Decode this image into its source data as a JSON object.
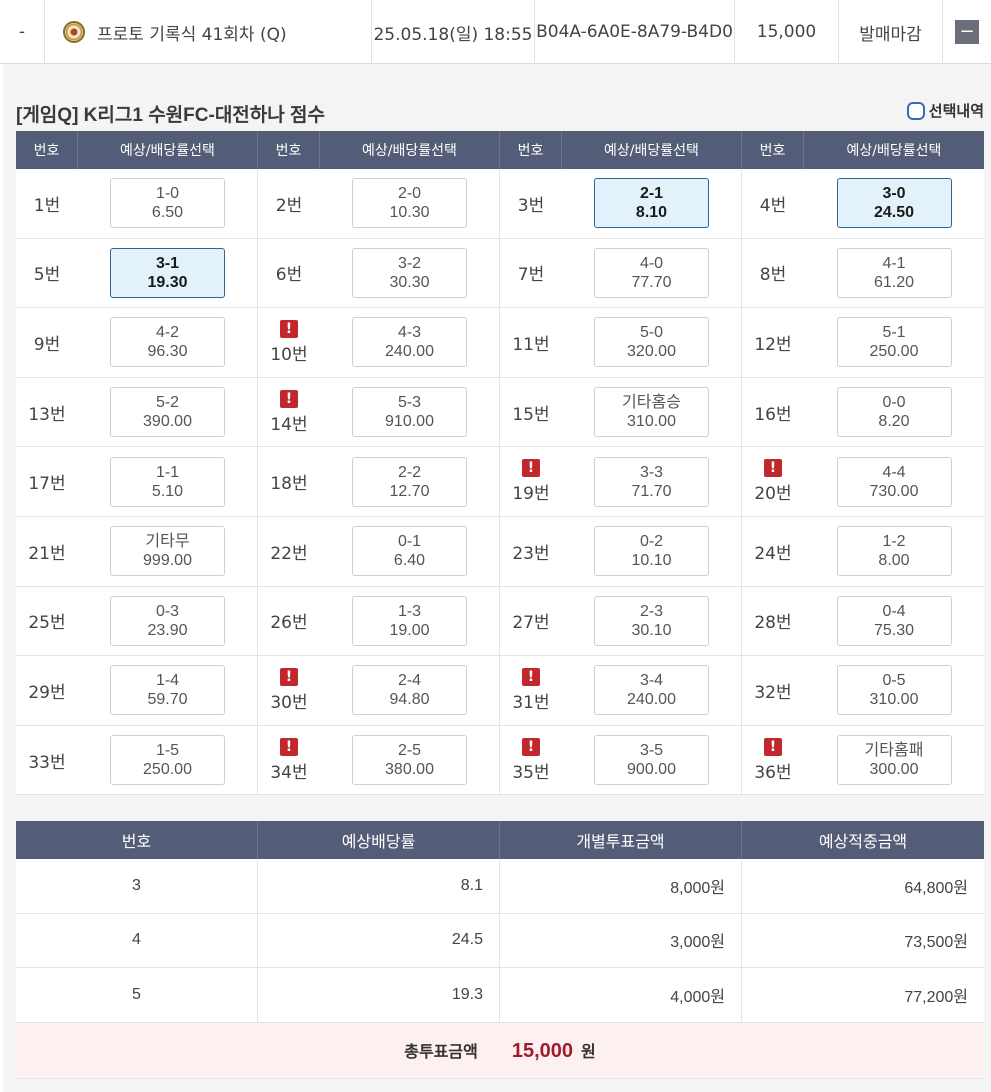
{
  "summary": {
    "dash": "-",
    "game_icon": "soccer-ball-icon",
    "game_name": "프로토 기록식 41회차 (Q)",
    "datetime": "25.05.18(일) 18:55",
    "code": "B04A-6A0E-8A79-B4D0",
    "amount": "15,000",
    "status": "발매마감",
    "collapse_symbol": "−"
  },
  "detail": {
    "title": "[게임Q] K리그1 수원FC-대전하나 점수",
    "history_label": "선택내역",
    "grid_headers": {
      "num": "번호",
      "select": "예상/배당률선택"
    },
    "cells": [
      {
        "num": "1번",
        "score": "1-0",
        "odds": "6.50",
        "selected": false,
        "warn": false
      },
      {
        "num": "2번",
        "score": "2-0",
        "odds": "10.30",
        "selected": false,
        "warn": false
      },
      {
        "num": "3번",
        "score": "2-1",
        "odds": "8.10",
        "selected": true,
        "warn": false
      },
      {
        "num": "4번",
        "score": "3-0",
        "odds": "24.50",
        "selected": true,
        "warn": false
      },
      {
        "num": "5번",
        "score": "3-1",
        "odds": "19.30",
        "selected": true,
        "warn": false
      },
      {
        "num": "6번",
        "score": "3-2",
        "odds": "30.30",
        "selected": false,
        "warn": false
      },
      {
        "num": "7번",
        "score": "4-0",
        "odds": "77.70",
        "selected": false,
        "warn": false
      },
      {
        "num": "8번",
        "score": "4-1",
        "odds": "61.20",
        "selected": false,
        "warn": false
      },
      {
        "num": "9번",
        "score": "4-2",
        "odds": "96.30",
        "selected": false,
        "warn": false
      },
      {
        "num": "10번",
        "score": "4-3",
        "odds": "240.00",
        "selected": false,
        "warn": true
      },
      {
        "num": "11번",
        "score": "5-0",
        "odds": "320.00",
        "selected": false,
        "warn": false
      },
      {
        "num": "12번",
        "score": "5-1",
        "odds": "250.00",
        "selected": false,
        "warn": false
      },
      {
        "num": "13번",
        "score": "5-2",
        "odds": "390.00",
        "selected": false,
        "warn": false
      },
      {
        "num": "14번",
        "score": "5-3",
        "odds": "910.00",
        "selected": false,
        "warn": true
      },
      {
        "num": "15번",
        "score": "기타홈승",
        "odds": "310.00",
        "selected": false,
        "warn": false
      },
      {
        "num": "16번",
        "score": "0-0",
        "odds": "8.20",
        "selected": false,
        "warn": false
      },
      {
        "num": "17번",
        "score": "1-1",
        "odds": "5.10",
        "selected": false,
        "warn": false
      },
      {
        "num": "18번",
        "score": "2-2",
        "odds": "12.70",
        "selected": false,
        "warn": false
      },
      {
        "num": "19번",
        "score": "3-3",
        "odds": "71.70",
        "selected": false,
        "warn": true
      },
      {
        "num": "20번",
        "score": "4-4",
        "odds": "730.00",
        "selected": false,
        "warn": true
      },
      {
        "num": "21번",
        "score": "기타무",
        "odds": "999.00",
        "selected": false,
        "warn": false
      },
      {
        "num": "22번",
        "score": "0-1",
        "odds": "6.40",
        "selected": false,
        "warn": false
      },
      {
        "num": "23번",
        "score": "0-2",
        "odds": "10.10",
        "selected": false,
        "warn": false
      },
      {
        "num": "24번",
        "score": "1-2",
        "odds": "8.00",
        "selected": false,
        "warn": false
      },
      {
        "num": "25번",
        "score": "0-3",
        "odds": "23.90",
        "selected": false,
        "warn": false
      },
      {
        "num": "26번",
        "score": "1-3",
        "odds": "19.00",
        "selected": false,
        "warn": false
      },
      {
        "num": "27번",
        "score": "2-3",
        "odds": "30.10",
        "selected": false,
        "warn": false
      },
      {
        "num": "28번",
        "score": "0-4",
        "odds": "75.30",
        "selected": false,
        "warn": false
      },
      {
        "num": "29번",
        "score": "1-4",
        "odds": "59.70",
        "selected": false,
        "warn": false
      },
      {
        "num": "30번",
        "score": "2-4",
        "odds": "94.80",
        "selected": false,
        "warn": true
      },
      {
        "num": "31번",
        "score": "3-4",
        "odds": "240.00",
        "selected": false,
        "warn": true
      },
      {
        "num": "32번",
        "score": "0-5",
        "odds": "310.00",
        "selected": false,
        "warn": false
      },
      {
        "num": "33번",
        "score": "1-5",
        "odds": "250.00",
        "selected": false,
        "warn": false
      },
      {
        "num": "34번",
        "score": "2-5",
        "odds": "380.00",
        "selected": false,
        "warn": true
      },
      {
        "num": "35번",
        "score": "3-5",
        "odds": "900.00",
        "selected": false,
        "warn": true
      },
      {
        "num": "36번",
        "score": "기타홈패",
        "odds": "300.00",
        "selected": false,
        "warn": true
      }
    ],
    "warn_symbol": "!"
  },
  "bets": {
    "headers": [
      "번호",
      "예상배당률",
      "개별투표금액",
      "예상적중금액"
    ],
    "rows": [
      {
        "no": "3",
        "odds": "8.1",
        "stake": "8,000원",
        "payout": "64,800원"
      },
      {
        "no": "4",
        "odds": "24.5",
        "stake": "3,000원",
        "payout": "73,500원"
      },
      {
        "no": "5",
        "odds": "19.3",
        "stake": "4,000원",
        "payout": "77,200원"
      }
    ],
    "total_label": "총투표금액",
    "total_value": "15,000",
    "total_unit": "원"
  },
  "colors": {
    "header_bg": "#545d78",
    "selected_bg": "#e3f1fb",
    "selected_border": "#2f6596",
    "warn": "#c1272d",
    "total_value": "#a31c2e",
    "total_bg": "#fcf0f0"
  }
}
